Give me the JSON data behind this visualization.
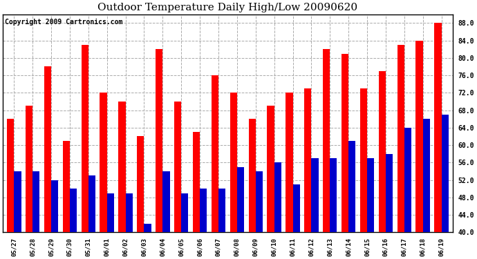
{
  "title": "Outdoor Temperature Daily High/Low 20090620",
  "copyright": "Copyright 2009 Cartronics.com",
  "dates": [
    "05/27",
    "05/28",
    "05/29",
    "05/30",
    "05/31",
    "06/01",
    "06/02",
    "06/03",
    "06/04",
    "06/05",
    "06/06",
    "06/07",
    "06/08",
    "06/09",
    "06/10",
    "06/11",
    "06/12",
    "06/13",
    "06/14",
    "06/15",
    "06/16",
    "06/17",
    "06/18",
    "06/19"
  ],
  "highs": [
    66,
    69,
    78,
    61,
    83,
    72,
    70,
    62,
    82,
    70,
    63,
    76,
    72,
    66,
    69,
    72,
    73,
    82,
    81,
    73,
    77,
    83,
    84,
    88
  ],
  "lows": [
    54,
    54,
    52,
    50,
    53,
    49,
    49,
    42,
    54,
    49,
    50,
    50,
    55,
    54,
    56,
    51,
    57,
    57,
    61,
    57,
    58,
    64,
    66,
    67
  ],
  "high_color": "#ff0000",
  "low_color": "#0000cc",
  "bg_color": "#ffffff",
  "grid_color": "#aaaaaa",
  "ylim_min": 40,
  "ylim_max": 90,
  "yticks": [
    40.0,
    44.0,
    48.0,
    52.0,
    56.0,
    60.0,
    64.0,
    68.0,
    72.0,
    76.0,
    80.0,
    84.0,
    88.0
  ],
  "title_fontsize": 11,
  "copyright_fontsize": 7,
  "bar_width": 0.38
}
